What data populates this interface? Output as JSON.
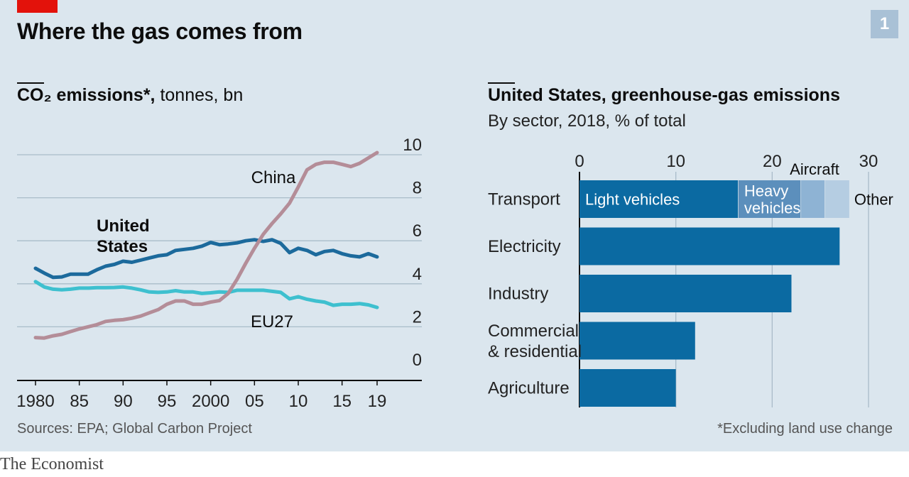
{
  "header": {
    "title": "Where the gas comes from",
    "chart_number": "1"
  },
  "left_chart": {
    "title_bold": "CO₂ emissions*,",
    "title_rest": " tonnes, bn"
  },
  "right_chart": {
    "title": "United States, greenhouse-gas emissions",
    "subtitle": "By sector, 2018, % of total"
  },
  "footer": {
    "source": "Sources: EPA; Global Carbon Project",
    "note": "*Excluding land use change",
    "brand": "The Economist"
  },
  "colors": {
    "background": "#dbe6ee",
    "china": "#b48d98",
    "united_states": "#1c6a9c",
    "eu27": "#3ec0cf",
    "bar": "#0b6aa2",
    "heavy_vehicles": "#5c8fbc",
    "aircraft": "#8eb3d4",
    "other": "#b5cde2",
    "accent_red": "#e3120b"
  },
  "chart_data": [
    {
      "type": "line",
      "title": "CO₂ emissions*, tonnes, bn",
      "ylim": [
        0,
        10
      ],
      "yticks": [
        0,
        2,
        4,
        6,
        8,
        10
      ],
      "xlim": [
        1980,
        2019
      ],
      "xticks": [
        1980,
        1985,
        1990,
        1995,
        2000,
        2005,
        2010,
        2015,
        2019
      ],
      "xtick_labels": [
        "1980",
        "85",
        "90",
        "95",
        "2000",
        "05",
        "10",
        "15",
        "19"
      ],
      "grid": true,
      "x": [
        1980,
        1981,
        1982,
        1983,
        1984,
        1985,
        1986,
        1987,
        1988,
        1989,
        1990,
        1991,
        1992,
        1993,
        1994,
        1995,
        1996,
        1997,
        1998,
        1999,
        2000,
        2001,
        2002,
        2003,
        2004,
        2005,
        2006,
        2007,
        2008,
        2009,
        2010,
        2011,
        2012,
        2013,
        2014,
        2015,
        2016,
        2017,
        2018,
        2019
      ],
      "series": [
        {
          "name": "China",
          "color": "#b48d98",
          "values": [
            1.5,
            1.48,
            1.58,
            1.65,
            1.78,
            1.9,
            2.0,
            2.1,
            2.25,
            2.3,
            2.33,
            2.4,
            2.5,
            2.65,
            2.8,
            3.05,
            3.2,
            3.2,
            3.05,
            3.05,
            3.15,
            3.22,
            3.55,
            4.2,
            4.95,
            5.65,
            6.3,
            6.8,
            7.25,
            7.75,
            8.5,
            9.3,
            9.55,
            9.65,
            9.65,
            9.55,
            9.45,
            9.6,
            9.85,
            10.1
          ]
        },
        {
          "name": "United States",
          "color": "#1c6a9c",
          "values": [
            4.72,
            4.5,
            4.3,
            4.32,
            4.45,
            4.45,
            4.45,
            4.65,
            4.82,
            4.9,
            5.05,
            5.0,
            5.1,
            5.2,
            5.3,
            5.35,
            5.55,
            5.6,
            5.65,
            5.75,
            5.92,
            5.82,
            5.85,
            5.9,
            6.0,
            6.05,
            5.97,
            6.05,
            5.88,
            5.45,
            5.65,
            5.55,
            5.35,
            5.5,
            5.55,
            5.4,
            5.3,
            5.25,
            5.4,
            5.25
          ]
        },
        {
          "name": "EU27",
          "color": "#3ec0cf",
          "values": [
            4.1,
            3.85,
            3.75,
            3.72,
            3.75,
            3.8,
            3.8,
            3.82,
            3.82,
            3.83,
            3.85,
            3.8,
            3.72,
            3.62,
            3.6,
            3.62,
            3.68,
            3.62,
            3.62,
            3.55,
            3.58,
            3.62,
            3.6,
            3.7,
            3.7,
            3.7,
            3.7,
            3.65,
            3.6,
            3.3,
            3.4,
            3.28,
            3.2,
            3.15,
            3.0,
            3.05,
            3.05,
            3.08,
            3.02,
            2.9
          ]
        }
      ]
    },
    {
      "type": "bar",
      "title": "United States, greenhouse-gas emissions",
      "subtitle": "By sector, 2018, % of total",
      "orientation": "horizontal",
      "xlim": [
        0,
        30
      ],
      "xticks": [
        0,
        10,
        20,
        30
      ],
      "grid": true,
      "categories": [
        "Transport",
        "Electricity",
        "Industry",
        "Commercial & residential",
        "Agriculture"
      ],
      "category_lines": [
        [
          "Transport"
        ],
        [
          "Electricity"
        ],
        [
          "Industry"
        ],
        [
          "Commercial",
          "& residential"
        ],
        [
          "Agriculture"
        ]
      ],
      "values": [
        28,
        27,
        22,
        12,
        10
      ],
      "transport_breakdown": [
        {
          "name": "Light vehicles",
          "lines": [
            "Light vehicles"
          ],
          "value": 16.5,
          "color": "#0b6aa2"
        },
        {
          "name": "Heavy vehicles",
          "lines": [
            "Heavy",
            "vehicles"
          ],
          "value": 6.5,
          "color": "#5c8fbc"
        },
        {
          "name": "Aircraft",
          "lines": [
            "Aircraft"
          ],
          "value": 2.5,
          "color": "#8eb3d4"
        },
        {
          "name": "Other",
          "lines": [
            "Other"
          ],
          "value": 2.5,
          "color": "#b5cde2"
        }
      ]
    }
  ]
}
